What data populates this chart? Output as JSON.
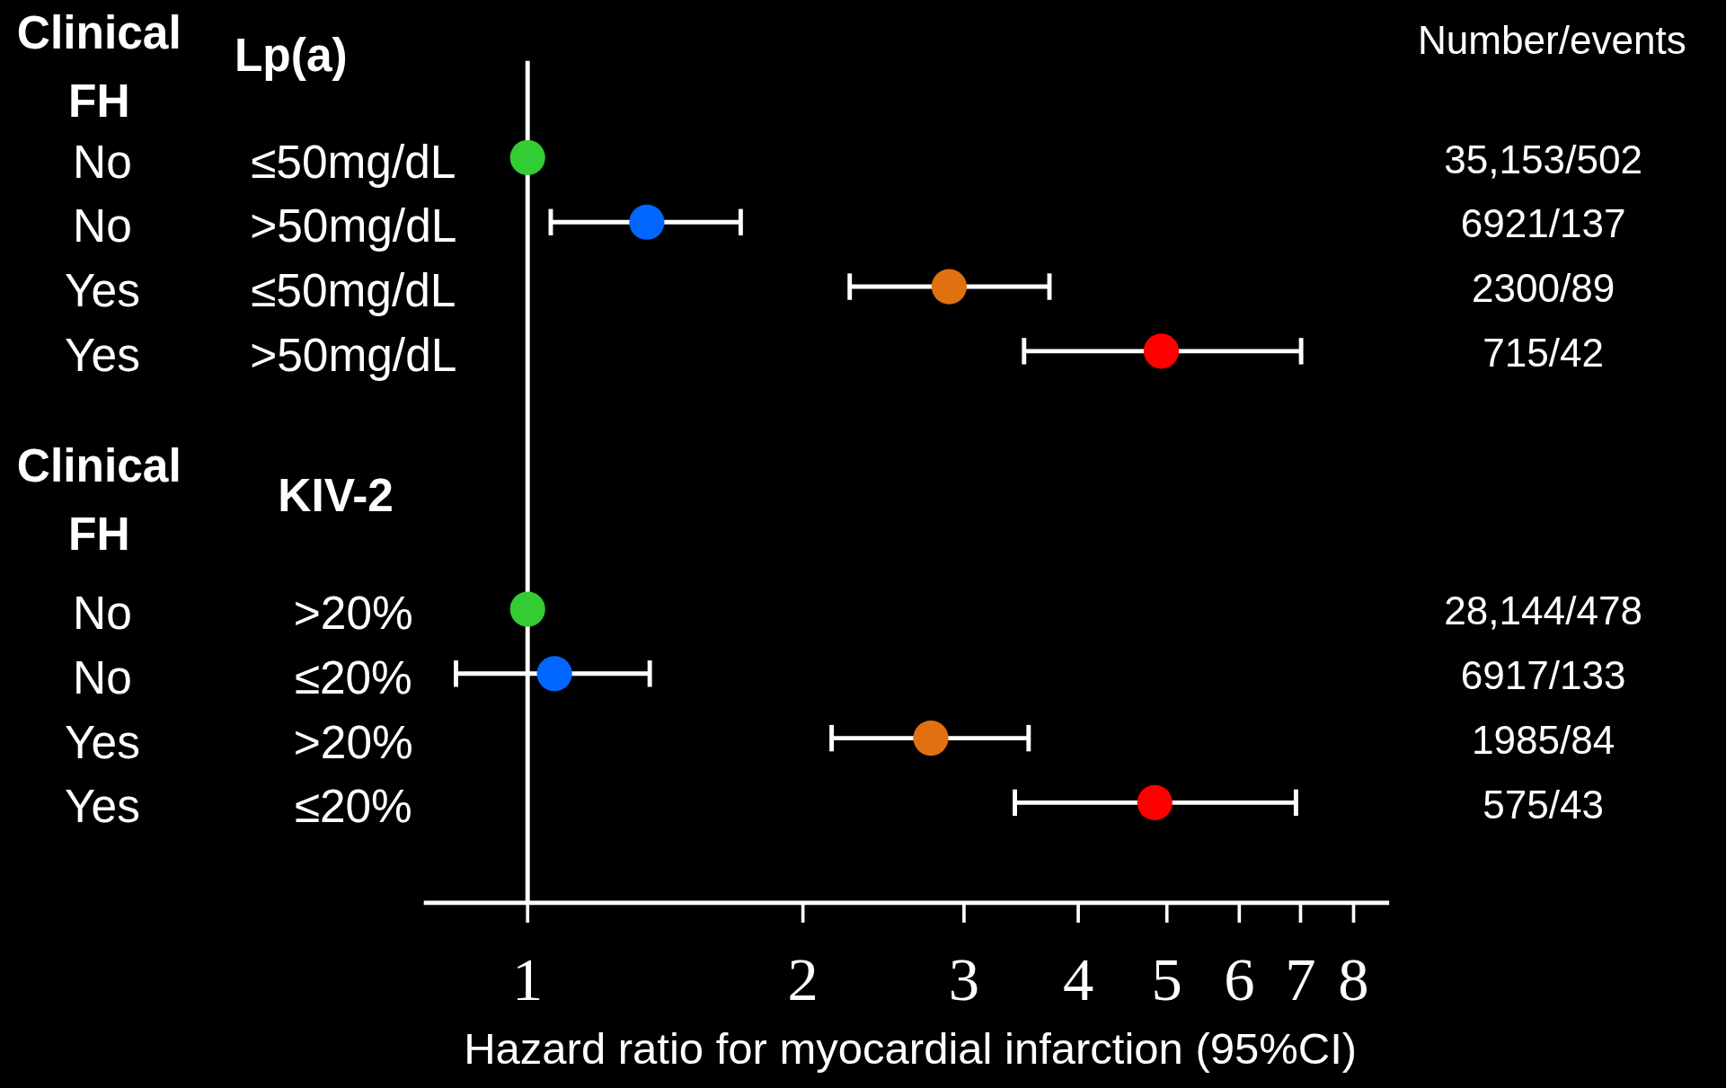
{
  "chart_data": {
    "type": "scatter",
    "orientation": "horizontal",
    "log": "x",
    "marker": "circle",
    "xlabel": "Hazard ratio for myocardial infarction (95%CI)",
    "categories": [
      "No",
      "No",
      "Yes",
      "Yes",
      null,
      null,
      null,
      "No",
      "No",
      "Yes",
      "Yes"
    ],
    "y2_categories": [
      "35,153/502",
      "6921/137",
      "2300/89",
      "715/42",
      null,
      null,
      null,
      "28,144/478",
      "6917/133",
      "1985/84",
      "575/43"
    ],
    "values": [
      1.0,
      1.35,
      2.89,
      4.93,
      null,
      null,
      null,
      1.0,
      1.07,
      2.76,
      4.85
    ],
    "errors": [
      null,
      [
        1.06,
        1.71
      ],
      [
        2.25,
        3.72
      ],
      [
        3.49,
        7.01
      ],
      null,
      null,
      null,
      null,
      [
        0.835,
        1.36
      ],
      [
        2.15,
        3.53
      ],
      [
        3.41,
        6.92
      ]
    ],
    "colors": [
      "#33cc33",
      "#0066ff",
      "#e07010",
      "#ff0000",
      null,
      null,
      null,
      "#33cc33",
      "#0066ff",
      "#e07010",
      "#ff0000"
    ],
    "xlim": [
      0.77,
      8.75
    ],
    "xticks": [
      1,
      2,
      3,
      4,
      5,
      6,
      7,
      8
    ],
    "ref_lines": [
      {
        "axis": "x",
        "value": 1,
        "color": "#ffffff"
      }
    ],
    "annotations": [
      "Clinical FH",
      "Lp(a)",
      "Clinical FH",
      "KIV-2",
      "Number/events",
      "≤50mg/dL",
      ">50mg/dL",
      "≤50mg/dL",
      ">50mg/dL",
      ">20%",
      "≤20%",
      ">20%",
      "≤20%"
    ]
  }
}
